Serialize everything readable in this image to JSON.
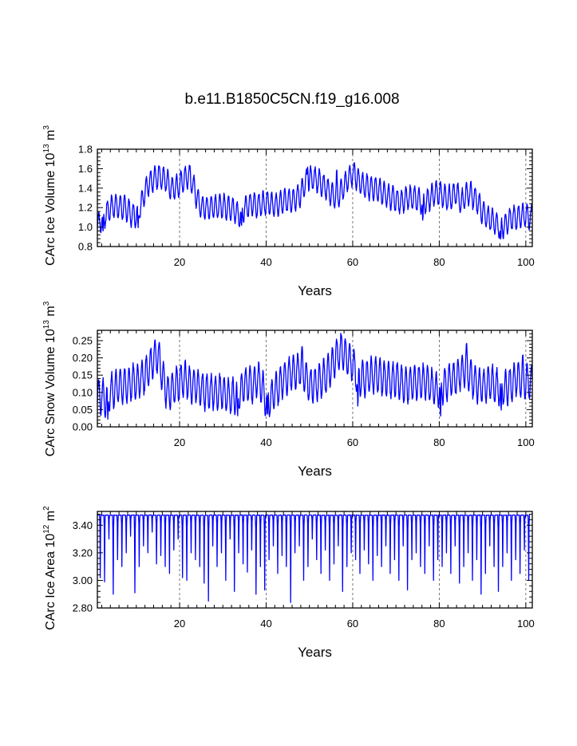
{
  "title": "b.e11.B1850C5CN.f19_g16.008",
  "colors": {
    "series": "#0000ff",
    "axes": "#000000",
    "grid": "#555555"
  },
  "chart_data": [
    {
      "type": "line",
      "name": "carc-ice-volume",
      "title": "",
      "xlabel": "Years",
      "ylabel": {
        "main": "CArc Ice Volume 10",
        "exp": "13",
        "unit": "m",
        "unit_exp": "3"
      },
      "xlim": [
        1,
        101.5
      ],
      "ylim": [
        0.8,
        1.8
      ],
      "xticks": [
        20,
        40,
        60,
        80,
        100
      ],
      "xtick_labels": [
        "20",
        "40",
        "60",
        "80",
        "100"
      ],
      "yticks": [
        0.8,
        1.0,
        1.2,
        1.4,
        1.6,
        1.8
      ],
      "ytick_labels": [
        "0.8",
        "1.0",
        "1.2",
        "1.4",
        "1.6",
        "1.8"
      ],
      "grid_x": [
        20,
        40,
        60,
        80,
        100
      ],
      "series": [
        {
          "name": "CArc Ice Volume",
          "baseline": [
            [
              1,
              1.02
            ],
            [
              2,
              1.08
            ],
            [
              3,
              1.13
            ],
            [
              4,
              1.2
            ],
            [
              5,
              1.22
            ],
            [
              6,
              1.21
            ],
            [
              7,
              1.2
            ],
            [
              8,
              1.18
            ],
            [
              9,
              1.12
            ],
            [
              10,
              1.12
            ],
            [
              11,
              1.22
            ],
            [
              12,
              1.38
            ],
            [
              13,
              1.45
            ],
            [
              14,
              1.5
            ],
            [
              15,
              1.5
            ],
            [
              16,
              1.5
            ],
            [
              17,
              1.48
            ],
            [
              18,
              1.4
            ],
            [
              19,
              1.4
            ],
            [
              20,
              1.44
            ],
            [
              21,
              1.5
            ],
            [
              22,
              1.52
            ],
            [
              23,
              1.45
            ],
            [
              24,
              1.3
            ],
            [
              25,
              1.2
            ],
            [
              26,
              1.2
            ],
            [
              27,
              1.2
            ],
            [
              28,
              1.22
            ],
            [
              29,
              1.2
            ],
            [
              30,
              1.22
            ],
            [
              31,
              1.2
            ],
            [
              32,
              1.2
            ],
            [
              33,
              1.15
            ],
            [
              34,
              1.12
            ],
            [
              35,
              1.2
            ],
            [
              36,
              1.22
            ],
            [
              37,
              1.24
            ],
            [
              38,
              1.22
            ],
            [
              39,
              1.24
            ],
            [
              40,
              1.26
            ],
            [
              41,
              1.24
            ],
            [
              42,
              1.22
            ],
            [
              43,
              1.24
            ],
            [
              44,
              1.26
            ],
            [
              45,
              1.28
            ],
            [
              46,
              1.28
            ],
            [
              47,
              1.3
            ],
            [
              48,
              1.34
            ],
            [
              49,
              1.44
            ],
            [
              50,
              1.5
            ],
            [
              51,
              1.5
            ],
            [
              52,
              1.48
            ],
            [
              53,
              1.44
            ],
            [
              54,
              1.4
            ],
            [
              55,
              1.34
            ],
            [
              56,
              1.3
            ],
            [
              57,
              1.34
            ],
            [
              58,
              1.42
            ],
            [
              59,
              1.5
            ],
            [
              60,
              1.55
            ],
            [
              61,
              1.5
            ],
            [
              62,
              1.45
            ],
            [
              63,
              1.42
            ],
            [
              64,
              1.4
            ],
            [
              65,
              1.4
            ],
            [
              66,
              1.38
            ],
            [
              67,
              1.35
            ],
            [
              68,
              1.32
            ],
            [
              69,
              1.3
            ],
            [
              70,
              1.28
            ],
            [
              71,
              1.26
            ],
            [
              72,
              1.28
            ],
            [
              73,
              1.3
            ],
            [
              74,
              1.3
            ],
            [
              75,
              1.28
            ],
            [
              76,
              1.26
            ],
            [
              77,
              1.26
            ],
            [
              78,
              1.3
            ],
            [
              79,
              1.35
            ],
            [
              80,
              1.35
            ],
            [
              81,
              1.32
            ],
            [
              82,
              1.3
            ],
            [
              83,
              1.32
            ],
            [
              84,
              1.35
            ],
            [
              85,
              1.25
            ],
            [
              86,
              1.32
            ],
            [
              87,
              1.35
            ],
            [
              88,
              1.3
            ],
            [
              89,
              1.25
            ],
            [
              90,
              1.15
            ],
            [
              91,
              1.1
            ],
            [
              92,
              1.08
            ],
            [
              93,
              1.05
            ],
            [
              94,
              1.0
            ],
            [
              95,
              1.02
            ],
            [
              96,
              1.06
            ],
            [
              97,
              1.1
            ],
            [
              98,
              1.1
            ],
            [
              99,
              1.12
            ],
            [
              100,
              1.12
            ],
            [
              101,
              1.1
            ]
          ],
          "amplitude": 0.12,
          "dips": [
            [
              94.2,
              0.86
            ],
            [
              34.3,
              1.0
            ],
            [
              10.4,
              0.99
            ],
            [
              2.3,
              0.94
            ],
            [
              76.2,
              1.05
            ]
          ],
          "peaks": [
            [
              60.4,
              1.66
            ],
            [
              49.6,
              1.62
            ],
            [
              15.2,
              1.63
            ],
            [
              22.4,
              1.63
            ],
            [
              56.3,
              1.6
            ]
          ]
        }
      ]
    },
    {
      "type": "line",
      "name": "carc-snow-volume",
      "title": "",
      "xlabel": "Years",
      "ylabel": {
        "main": "CArc Snow Volume 10",
        "exp": "13",
        "unit": "m",
        "unit_exp": "3"
      },
      "xlim": [
        1,
        101.5
      ],
      "ylim": [
        0.0,
        0.28
      ],
      "xticks": [
        20,
        40,
        60,
        80,
        100
      ],
      "xtick_labels": [
        "20",
        "40",
        "60",
        "80",
        "100"
      ],
      "yticks": [
        0.0,
        0.05,
        0.1,
        0.15,
        0.2,
        0.25
      ],
      "ytick_labels": [
        "0.00",
        "0.05",
        "0.10",
        "0.15",
        "0.20",
        "0.25"
      ],
      "grid_x": [
        20,
        40,
        60,
        80,
        100
      ],
      "series": [
        {
          "name": "CArc Snow Volume",
          "baseline": [
            [
              1,
              0.09
            ],
            [
              2,
              0.09
            ],
            [
              3,
              0.08
            ],
            [
              4,
              0.1
            ],
            [
              5,
              0.11
            ],
            [
              6,
              0.12
            ],
            [
              7,
              0.12
            ],
            [
              8,
              0.12
            ],
            [
              9,
              0.13
            ],
            [
              10,
              0.13
            ],
            [
              11,
              0.14
            ],
            [
              12,
              0.15
            ],
            [
              13,
              0.17
            ],
            [
              14,
              0.2
            ],
            [
              15,
              0.21
            ],
            [
              16,
              0.15
            ],
            [
              17,
              0.1
            ],
            [
              18,
              0.1
            ],
            [
              19,
              0.12
            ],
            [
              20,
              0.13
            ],
            [
              21,
              0.14
            ],
            [
              22,
              0.13
            ],
            [
              23,
              0.12
            ],
            [
              24,
              0.12
            ],
            [
              25,
              0.11
            ],
            [
              26,
              0.1
            ],
            [
              27,
              0.1
            ],
            [
              28,
              0.1
            ],
            [
              29,
              0.1
            ],
            [
              30,
              0.1
            ],
            [
              31,
              0.09
            ],
            [
              32,
              0.09
            ],
            [
              33,
              0.09
            ],
            [
              34,
              0.1
            ],
            [
              35,
              0.12
            ],
            [
              36,
              0.13
            ],
            [
              37,
              0.12
            ],
            [
              38,
              0.14
            ],
            [
              39,
              0.12
            ],
            [
              40,
              0.08
            ],
            [
              41,
              0.08
            ],
            [
              42,
              0.1
            ],
            [
              43,
              0.12
            ],
            [
              44,
              0.14
            ],
            [
              45,
              0.15
            ],
            [
              46,
              0.16
            ],
            [
              47,
              0.16
            ],
            [
              48,
              0.17
            ],
            [
              49,
              0.15
            ],
            [
              50,
              0.12
            ],
            [
              51,
              0.12
            ],
            [
              52,
              0.13
            ],
            [
              53,
              0.14
            ],
            [
              54,
              0.15
            ],
            [
              55,
              0.17
            ],
            [
              56,
              0.2
            ],
            [
              57,
              0.22
            ],
            [
              58,
              0.21
            ],
            [
              59,
              0.2
            ],
            [
              60,
              0.18
            ],
            [
              61,
              0.15
            ],
            [
              62,
              0.14
            ],
            [
              63,
              0.14
            ],
            [
              64,
              0.15
            ],
            [
              65,
              0.15
            ],
            [
              66,
              0.15
            ],
            [
              67,
              0.14
            ],
            [
              68,
              0.14
            ],
            [
              69,
              0.13
            ],
            [
              70,
              0.14
            ],
            [
              71,
              0.13
            ],
            [
              72,
              0.12
            ],
            [
              73,
              0.12
            ],
            [
              74,
              0.13
            ],
            [
              75,
              0.13
            ],
            [
              76,
              0.13
            ],
            [
              77,
              0.13
            ],
            [
              78,
              0.12
            ],
            [
              79,
              0.11
            ],
            [
              80,
              0.11
            ],
            [
              81,
              0.12
            ],
            [
              82,
              0.13
            ],
            [
              83,
              0.14
            ],
            [
              84,
              0.14
            ],
            [
              85,
              0.16
            ],
            [
              86,
              0.17
            ],
            [
              87,
              0.15
            ],
            [
              88,
              0.13
            ],
            [
              89,
              0.12
            ],
            [
              90,
              0.12
            ],
            [
              91,
              0.12
            ],
            [
              92,
              0.13
            ],
            [
              93,
              0.12
            ],
            [
              94,
              0.11
            ],
            [
              95,
              0.11
            ],
            [
              96,
              0.12
            ],
            [
              97,
              0.13
            ],
            [
              98,
              0.14
            ],
            [
              99,
              0.14
            ],
            [
              100,
              0.13
            ],
            [
              101,
              0.13
            ]
          ],
          "amplitude": 0.05,
          "dips": [
            [
              3.4,
              0.02
            ],
            [
              40.3,
              0.03
            ],
            [
              33.4,
              0.03
            ],
            [
              80.3,
              0.02
            ],
            [
              94.3,
              0.04
            ],
            [
              61.2,
              0.05
            ]
          ],
          "peaks": [
            [
              57.4,
              0.265
            ],
            [
              15.3,
              0.245
            ],
            [
              86.3,
              0.245
            ],
            [
              48.3,
              0.235
            ],
            [
              59.3,
              0.24
            ],
            [
              99.3,
              0.21
            ]
          ]
        }
      ]
    },
    {
      "type": "line",
      "name": "carc-ice-area",
      "title": "",
      "xlabel": "Years",
      "ylabel": {
        "main": "CArc Ice Area 10",
        "exp": "12",
        "unit": "m",
        "unit_exp": "2"
      },
      "xlim": [
        1,
        101.5
      ],
      "ylim": [
        2.8,
        3.5
      ],
      "xticks": [
        20,
        40,
        60,
        80,
        100
      ],
      "xtick_labels": [
        "20",
        "40",
        "60",
        "80",
        "100"
      ],
      "yticks": [
        2.8,
        3.0,
        3.2,
        3.4
      ],
      "ytick_labels": [
        "2.80",
        "3.00",
        "3.20",
        "3.40"
      ],
      "grid_x": [
        20,
        40,
        60,
        80,
        100
      ],
      "series": [
        {
          "name": "CArc Ice Area",
          "seasonal_max": 3.475,
          "annual_minima": [
            3.02,
            2.99,
            3.3,
            2.9,
            3.15,
            3.1,
            3.2,
            3.32,
            2.91,
            3.1,
            3.25,
            3.2,
            3.35,
            3.12,
            3.18,
            3.1,
            3.05,
            3.22,
            3.3,
            3.02,
            3.0,
            3.2,
            3.15,
            3.1,
            2.98,
            2.85,
            3.25,
            3.1,
            3.2,
            3.0,
            3.3,
            2.92,
            3.2,
            3.12,
            3.06,
            3.22,
            2.9,
            3.1,
            2.93,
            3.15,
            3.25,
            3.05,
            3.18,
            3.1,
            2.84,
            3.2,
            3.25,
            3.0,
            3.1,
            3.3,
            3.15,
            3.05,
            3.22,
            3.0,
            3.12,
            3.25,
            2.92,
            3.1,
            3.2,
            3.15,
            3.05,
            3.22,
            3.12,
            3.0,
            3.18,
            3.1,
            3.25,
            3.05,
            3.15,
            3.0,
            3.25,
            2.93,
            3.15,
            3.2,
            3.1,
            3.05,
            3.25,
            3.0,
            3.15,
            3.1,
            3.2,
            3.05,
            3.25,
            2.98,
            3.1,
            3.2,
            3.0,
            3.15,
            2.9,
            3.05,
            3.25,
            3.1,
            2.92,
            3.1,
            3.2,
            3.0,
            3.15,
            3.05,
            3.22,
            3.0
          ]
        }
      ]
    }
  ]
}
